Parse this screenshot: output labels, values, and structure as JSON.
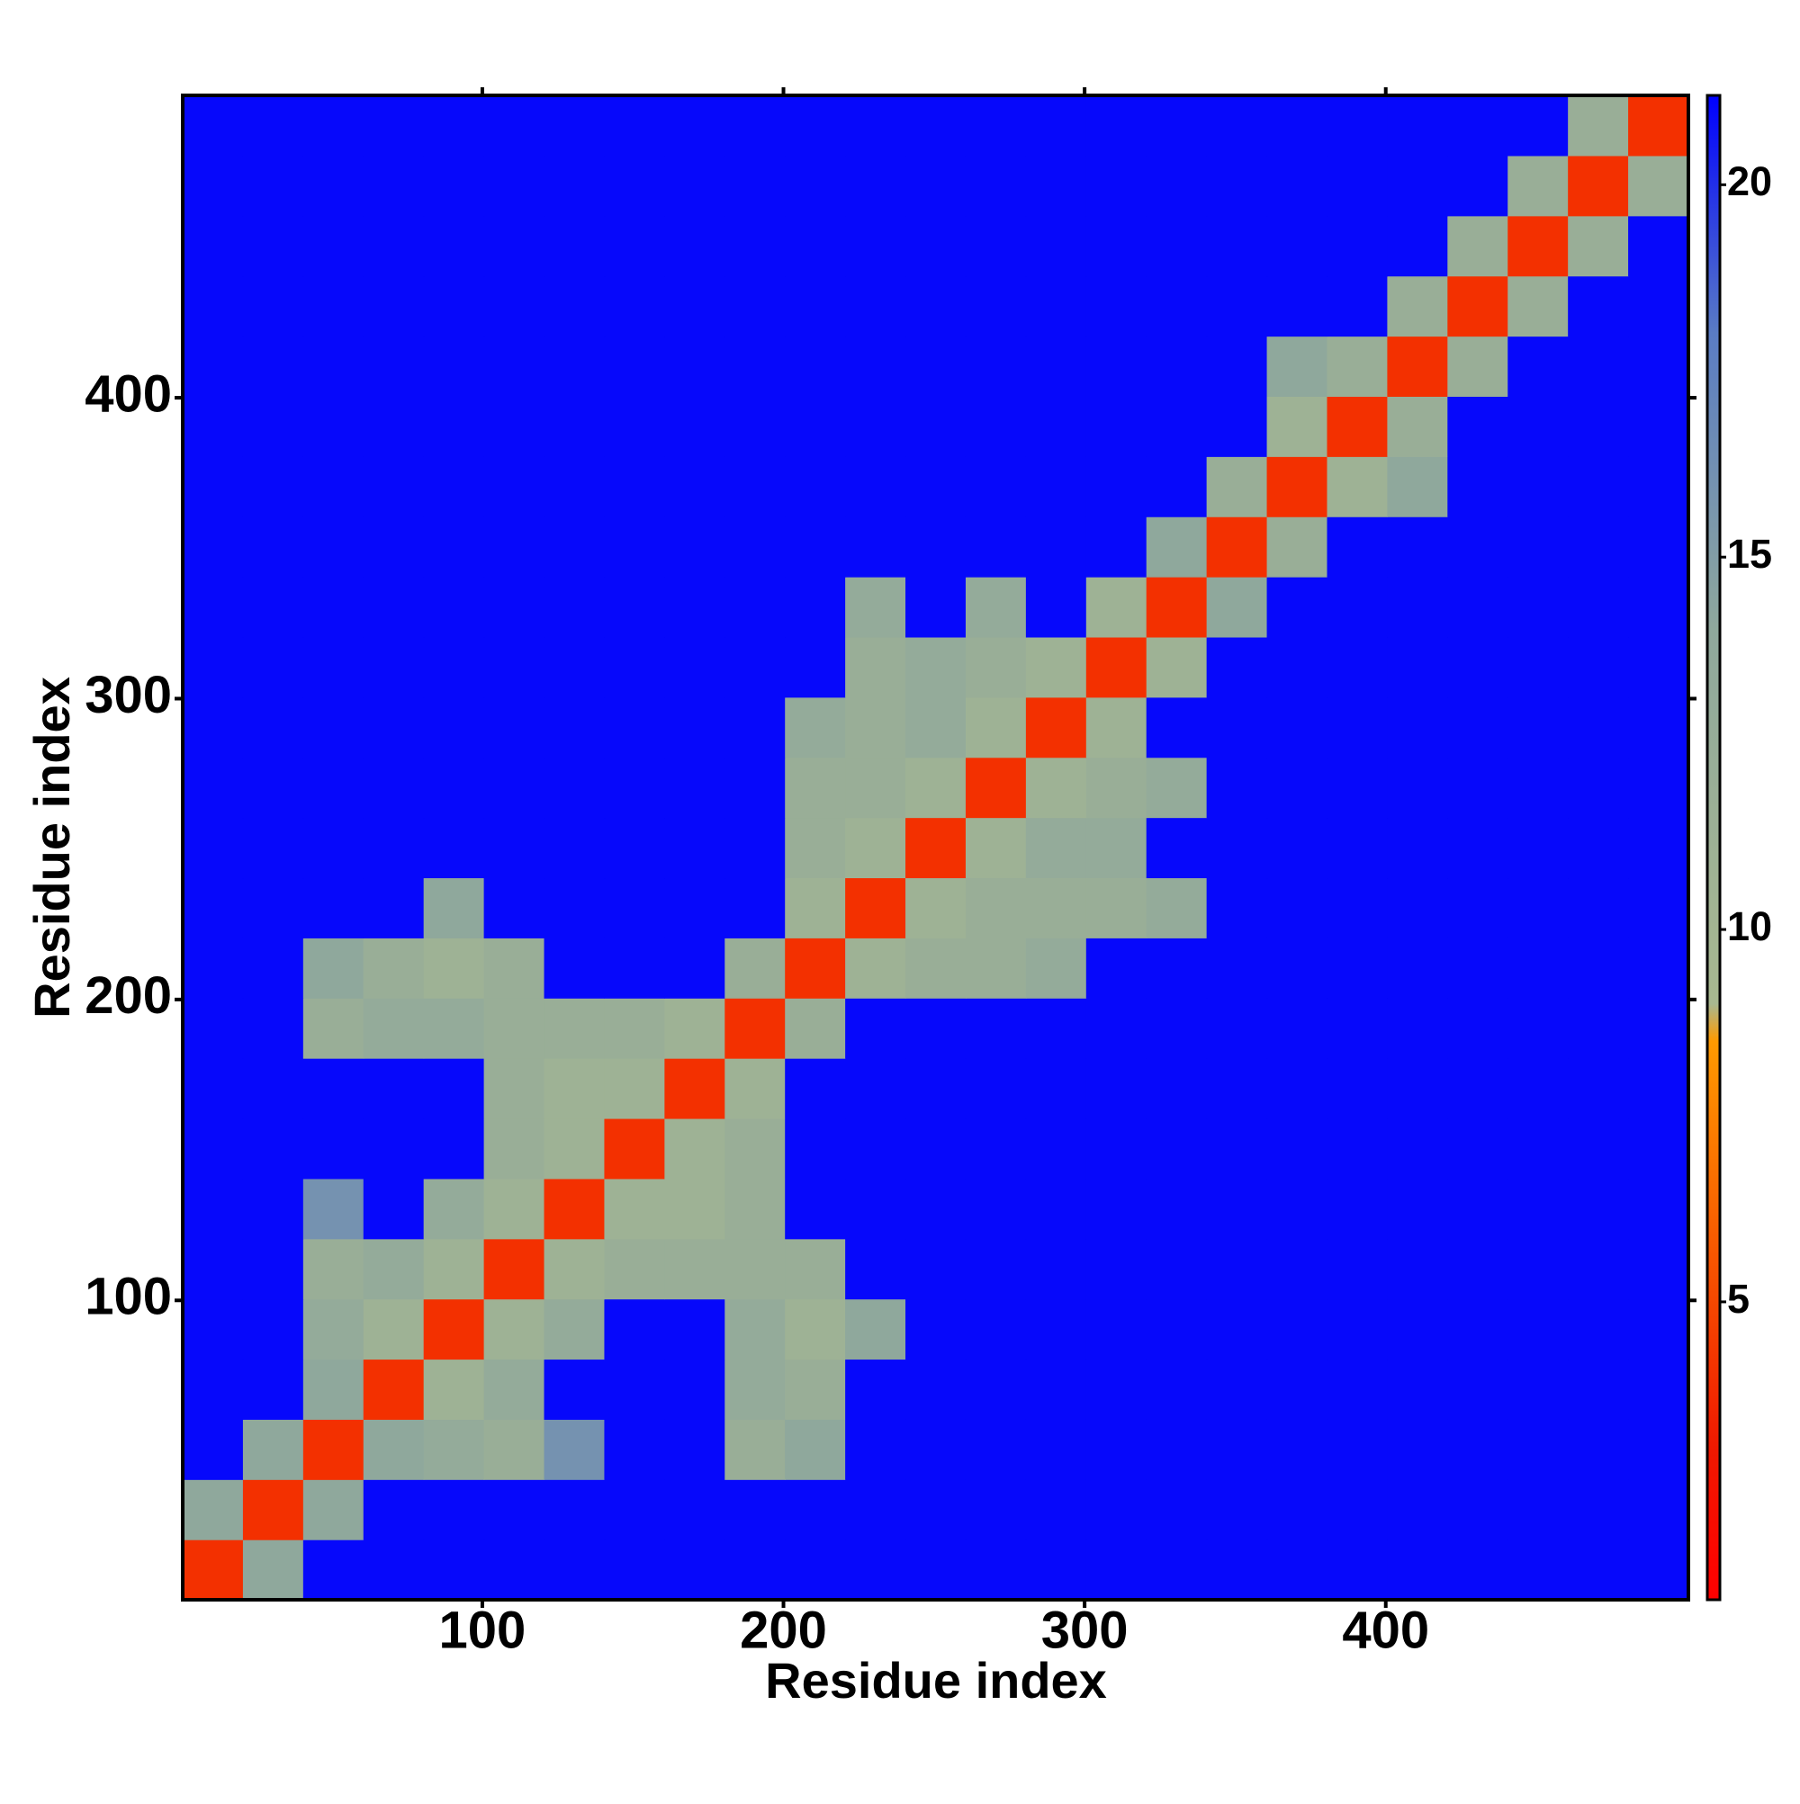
{
  "chart_data": {
    "type": "heatmap",
    "xlabel": "Residue index",
    "ylabel": "Residue index",
    "xlim": [
      0.5,
      500.5
    ],
    "ylim": [
      0.5,
      500.5
    ],
    "xticks": [
      100,
      200,
      300,
      400
    ],
    "yticks": [
      100,
      200,
      300,
      400
    ],
    "zlim": [
      1,
      21.2
    ],
    "zticks": [
      5,
      10,
      15,
      20
    ],
    "colorscale": [
      [
        1,
        "#ff0000"
      ],
      [
        3,
        "#f01800"
      ],
      [
        8.5,
        "#ff9a00"
      ],
      [
        9,
        "#a8b890"
      ],
      [
        14,
        "#8fa89c"
      ],
      [
        18,
        "#5a7cc4"
      ],
      [
        21.2,
        "#0000ff"
      ]
    ],
    "z": [
      [
        4,
        14,
        21,
        21,
        21,
        21,
        21,
        21,
        21,
        21,
        21,
        21,
        21,
        21,
        21,
        21,
        21,
        21,
        21,
        21,
        21,
        21,
        21,
        21,
        21
      ],
      [
        14,
        4,
        14,
        21,
        21,
        21,
        21,
        21,
        21,
        21,
        21,
        21,
        21,
        21,
        21,
        21,
        21,
        21,
        21,
        21,
        21,
        21,
        21,
        21,
        21
      ],
      [
        21,
        14,
        4,
        14,
        13,
        12,
        16,
        21,
        21,
        12,
        14,
        21,
        21,
        21,
        21,
        21,
        21,
        21,
        21,
        21,
        21,
        21,
        21,
        21,
        21
      ],
      [
        21,
        21,
        14,
        4,
        11,
        13,
        21,
        21,
        21,
        13,
        12,
        21,
        21,
        21,
        21,
        21,
        21,
        21,
        21,
        21,
        21,
        21,
        21,
        21,
        21
      ],
      [
        21,
        21,
        13,
        11,
        4,
        11,
        13,
        21,
        21,
        13,
        11,
        14,
        21,
        21,
        21,
        21,
        21,
        21,
        21,
        21,
        21,
        21,
        21,
        21,
        21
      ],
      [
        21,
        21,
        12,
        13,
        11,
        4,
        11,
        12,
        12,
        12,
        12,
        21,
        21,
        21,
        21,
        21,
        21,
        21,
        21,
        21,
        21,
        21,
        21,
        21,
        21
      ],
      [
        21,
        21,
        16,
        21,
        13,
        11,
        4,
        11,
        11,
        12,
        21,
        21,
        21,
        21,
        21,
        21,
        21,
        21,
        21,
        21,
        21,
        21,
        21,
        21,
        21
      ],
      [
        21,
        21,
        21,
        21,
        21,
        12,
        11,
        4,
        11,
        12,
        21,
        21,
        21,
        21,
        21,
        21,
        21,
        21,
        21,
        21,
        21,
        21,
        21,
        21,
        21
      ],
      [
        21,
        21,
        21,
        21,
        21,
        12,
        11,
        11,
        4,
        11,
        21,
        21,
        21,
        21,
        21,
        21,
        21,
        21,
        21,
        21,
        21,
        21,
        21,
        21,
        21
      ],
      [
        21,
        21,
        12,
        13,
        13,
        12,
        12,
        12,
        11,
        4,
        12,
        21,
        21,
        21,
        21,
        21,
        21,
        21,
        21,
        21,
        21,
        21,
        21,
        21,
        21
      ],
      [
        21,
        21,
        14,
        12,
        11,
        12,
        21,
        21,
        21,
        12,
        4,
        11,
        12,
        12,
        13,
        21,
        21,
        21,
        21,
        21,
        21,
        21,
        21,
        21,
        21
      ],
      [
        21,
        21,
        21,
        21,
        14,
        21,
        21,
        21,
        21,
        21,
        11,
        4,
        11,
        12,
        12,
        12,
        13,
        21,
        21,
        21,
        21,
        21,
        21,
        21,
        21
      ],
      [
        21,
        21,
        21,
        21,
        21,
        21,
        21,
        21,
        21,
        21,
        12,
        11,
        4,
        11,
        13,
        13,
        21,
        21,
        21,
        21,
        21,
        21,
        21,
        21,
        21
      ],
      [
        21,
        21,
        21,
        21,
        21,
        21,
        21,
        21,
        21,
        21,
        12,
        12,
        11,
        4,
        11,
        12,
        13,
        21,
        21,
        21,
        21,
        21,
        21,
        21,
        21
      ],
      [
        21,
        21,
        21,
        21,
        21,
        21,
        21,
        21,
        21,
        21,
        13,
        12,
        13,
        11,
        4,
        11,
        21,
        21,
        21,
        21,
        21,
        21,
        21,
        21,
        21
      ],
      [
        21,
        21,
        21,
        21,
        21,
        21,
        21,
        21,
        21,
        21,
        21,
        12,
        13,
        12,
        11,
        4,
        11,
        21,
        21,
        21,
        21,
        21,
        21,
        21,
        21
      ],
      [
        21,
        21,
        21,
        21,
        21,
        21,
        21,
        21,
        21,
        21,
        21,
        13,
        21,
        13,
        21,
        11,
        4,
        14,
        21,
        21,
        21,
        21,
        21,
        21,
        21
      ],
      [
        21,
        21,
        21,
        21,
        21,
        21,
        21,
        21,
        21,
        21,
        21,
        21,
        21,
        21,
        21,
        21,
        14,
        4,
        12,
        21,
        21,
        21,
        21,
        21,
        21
      ],
      [
        21,
        21,
        21,
        21,
        21,
        21,
        21,
        21,
        21,
        21,
        21,
        21,
        21,
        21,
        21,
        21,
        21,
        12,
        4,
        11,
        14,
        21,
        21,
        21,
        21
      ],
      [
        21,
        21,
        21,
        21,
        21,
        21,
        21,
        21,
        21,
        21,
        21,
        21,
        21,
        21,
        21,
        21,
        21,
        21,
        11,
        4,
        12,
        21,
        21,
        21,
        21
      ],
      [
        21,
        21,
        21,
        21,
        21,
        21,
        21,
        21,
        21,
        21,
        21,
        21,
        21,
        21,
        21,
        21,
        21,
        21,
        14,
        12,
        4,
        12,
        21,
        21,
        21
      ],
      [
        21,
        21,
        21,
        21,
        21,
        21,
        21,
        21,
        21,
        21,
        21,
        21,
        21,
        21,
        21,
        21,
        21,
        21,
        21,
        21,
        12,
        4,
        12,
        21,
        21
      ],
      [
        21,
        21,
        21,
        21,
        21,
        21,
        21,
        21,
        21,
        21,
        21,
        21,
        21,
        21,
        21,
        21,
        21,
        21,
        21,
        21,
        21,
        12,
        4,
        12,
        21
      ],
      [
        21,
        21,
        21,
        21,
        21,
        21,
        21,
        21,
        21,
        21,
        21,
        21,
        21,
        21,
        21,
        21,
        21,
        21,
        21,
        21,
        21,
        21,
        12,
        4,
        12
      ],
      [
        21,
        21,
        21,
        21,
        21,
        21,
        21,
        21,
        21,
        21,
        21,
        21,
        21,
        21,
        21,
        21,
        21,
        21,
        21,
        21,
        21,
        21,
        21,
        12,
        4
      ]
    ]
  }
}
